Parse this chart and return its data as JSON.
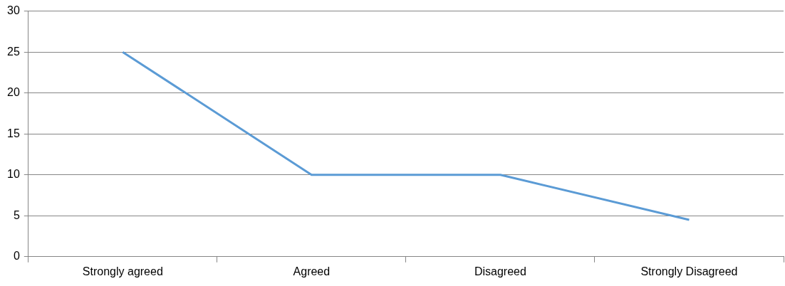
{
  "chart_data": {
    "type": "line",
    "categories": [
      "Strongly agreed",
      "Agreed",
      "Disagreed",
      "Strongly Disagreed"
    ],
    "series": [
      {
        "color": "#5b9bd5",
        "values": [
          25,
          10,
          10,
          4.5
        ]
      }
    ],
    "ylim": [
      0,
      30
    ],
    "yticks": [
      0,
      5,
      10,
      15,
      20,
      25,
      30
    ],
    "grid": "y",
    "legend": false,
    "marker": "none",
    "line_style": "solid"
  }
}
